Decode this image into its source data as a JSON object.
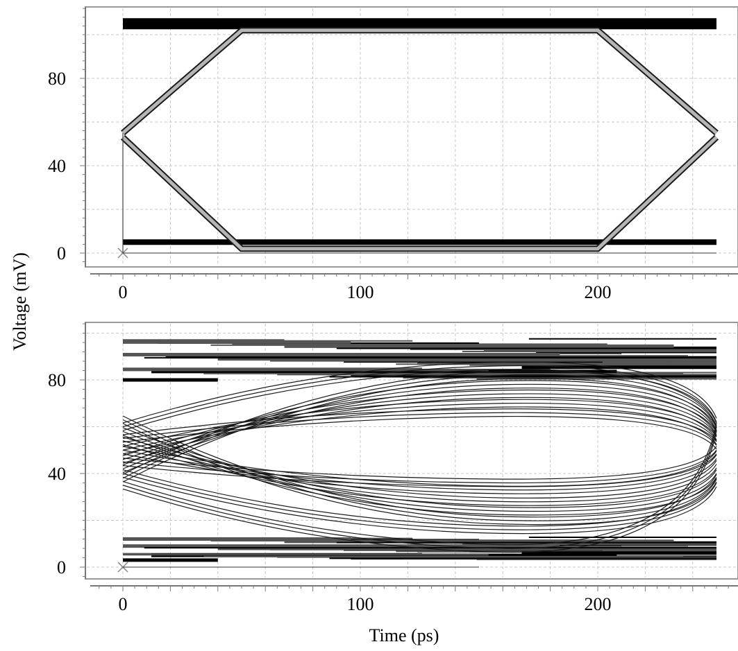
{
  "chart_data": [
    {
      "type": "line",
      "panel": "top",
      "title": "",
      "xlabel": "",
      "ylabel": "Voltage (mV)",
      "xlim": [
        -13,
        260
      ],
      "ylim": [
        -7,
        112
      ],
      "x_ticks": [
        0,
        100,
        200
      ],
      "x_tick_labels": [
        "0",
        "100",
        "200"
      ],
      "y_ticks": [
        0,
        40,
        80
      ],
      "y_tick_labels": [
        "0",
        "40",
        "80"
      ],
      "grid": true,
      "legend": "none",
      "series": [
        {
          "x": [
            0,
            250
          ],
          "y": [
            105,
            105
          ]
        },
        {
          "x": [
            0,
            250
          ],
          "y": [
            5,
            5
          ]
        },
        {
          "x": [
            0,
            50,
            200,
            250
          ],
          "y": [
            55,
            102,
            102,
            55
          ]
        },
        {
          "x": [
            0,
            50,
            200,
            250
          ],
          "y": [
            53,
            2,
            2,
            53
          ]
        }
      ]
    },
    {
      "type": "line",
      "panel": "bottom",
      "title": "",
      "xlabel": "Time (ps)",
      "ylabel": "Voltage (mV)",
      "xlim": [
        -13,
        260
      ],
      "ylim": [
        -7,
        106
      ],
      "x_ticks": [
        0,
        100,
        200
      ],
      "x_tick_labels": [
        "0",
        "100",
        "200"
      ],
      "y_ticks": [
        0,
        40,
        80
      ],
      "y_tick_labels": [
        "0",
        "40",
        "80"
      ],
      "grid": true,
      "legend": "none",
      "upper_band": [
        80,
        98
      ],
      "lower_band": [
        3,
        13
      ],
      "series": [
        {
          "x": [
            0,
            160,
            250
          ],
          "y": [
            38,
            82,
            60
          ]
        },
        {
          "x": [
            0,
            160,
            250
          ],
          "y": [
            42,
            78,
            58
          ]
        },
        {
          "x": [
            0,
            160,
            250
          ],
          "y": [
            46,
            74,
            56
          ]
        },
        {
          "x": [
            0,
            160,
            250
          ],
          "y": [
            50,
            70,
            54
          ]
        },
        {
          "x": [
            0,
            160,
            250
          ],
          "y": [
            55,
            66,
            52
          ]
        },
        {
          "x": [
            0,
            160,
            250
          ],
          "y": [
            60,
            86,
            62
          ]
        },
        {
          "x": [
            0,
            160,
            250
          ],
          "y": [
            63,
            20,
            38
          ]
        },
        {
          "x": [
            0,
            160,
            250
          ],
          "y": [
            58,
            24,
            40
          ]
        },
        {
          "x": [
            0,
            160,
            250
          ],
          "y": [
            54,
            28,
            44
          ]
        },
        {
          "x": [
            0,
            160,
            250
          ],
          "y": [
            50,
            33,
            48
          ]
        },
        {
          "x": [
            0,
            160,
            250
          ],
          "y": [
            45,
            36,
            50
          ]
        },
        {
          "x": [
            0,
            160,
            250
          ],
          "y": [
            40,
            16,
            36
          ]
        },
        {
          "x": [
            0,
            160,
            250
          ],
          "y": [
            35,
            8,
            60
          ]
        }
      ]
    }
  ]
}
